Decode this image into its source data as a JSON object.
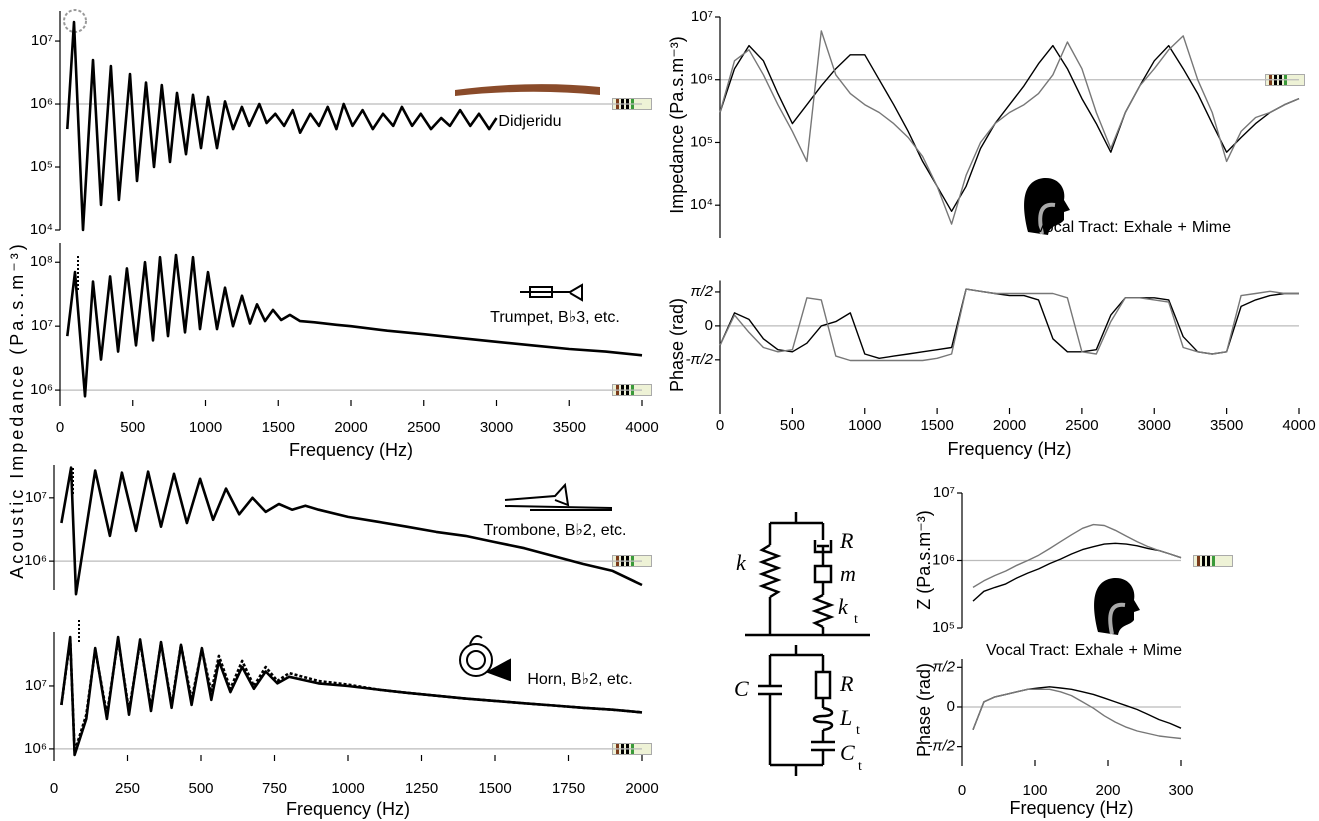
{
  "chart_data": [
    {
      "type": "line",
      "yscale": "log",
      "ylabel": "Acoustic Impedance (Pa.s.m⁻³)",
      "annotation": "Didjeridu",
      "color": "#000000",
      "xlim": [
        0,
        4000
      ],
      "ylim": [
        10000,
        30000000
      ],
      "hline": 1000000,
      "yticks": [
        {
          "value": 10000,
          "label": "10⁴"
        },
        {
          "value": 100000,
          "label": "10⁵"
        },
        {
          "value": 1000000,
          "label": "10⁶"
        },
        {
          "value": 10000000,
          "label": "10⁷"
        }
      ],
      "x": [
        50,
        96,
        158,
        227,
        282,
        350,
        405,
        481,
        529,
        591,
        646,
        700,
        756,
        804,
        866,
        914,
        969,
        1017,
        1079,
        1134,
        1190,
        1250,
        1300,
        1370,
        1420,
        1480,
        1540,
        1600,
        1650,
        1720,
        1780,
        1840,
        1900,
        1950,
        2010,
        2080,
        2150,
        2220,
        2290,
        2350,
        2420,
        2480,
        2550,
        2620,
        2680,
        2750,
        2820,
        2880,
        2950,
        3000
      ],
      "values": [
        400000,
        20000000,
        10000,
        5000000,
        25000,
        4000000,
        30000,
        3000000,
        60000,
        2200000,
        100000,
        2000000,
        120000,
        1500000,
        160000,
        1400000,
        200000,
        1300000,
        200000,
        1100000,
        400000,
        900000,
        450000,
        1000000,
        500000,
        700000,
        450000,
        800000,
        350000,
        700000,
        450000,
        900000,
        400000,
        1000000,
        450000,
        800000,
        400000,
        700000,
        450000,
        900000,
        450000,
        700000,
        400000,
        600000,
        450000,
        800000,
        450000,
        700000,
        400000,
        600000
      ]
    },
    {
      "type": "line",
      "yscale": "log",
      "xlabel": "Frequency (Hz)",
      "annotation": "Trumpet, B♭3, etc.",
      "color": "#000000",
      "xlim": [
        0,
        4000
      ],
      "ylim": [
        700000,
        200000000
      ],
      "hline": 1000000,
      "xticks": [
        0,
        500,
        1000,
        1500,
        2000,
        2500,
        3000,
        3500,
        4000
      ],
      "yticks": [
        {
          "value": 1000000,
          "label": "10⁶"
        },
        {
          "value": 10000000,
          "label": "10⁷"
        },
        {
          "value": 100000000,
          "label": "10⁸"
        }
      ],
      "x": [
        50,
        103,
        172,
        227,
        282,
        344,
        399,
        460,
        522,
        584,
        639,
        687,
        742,
        797,
        859,
        914,
        962,
        1017,
        1079,
        1134,
        1189,
        1251,
        1306,
        1354,
        1409,
        1464,
        1520,
        1580,
        1650,
        1750,
        1900,
        2000,
        2250,
        2500,
        2750,
        3000,
        3250,
        3500,
        3750,
        4000
      ],
      "values": [
        7000000,
        70000000,
        800000,
        50000000,
        3000000,
        60000000,
        4000000,
        80000000,
        5000000,
        100000000,
        6000000,
        120000000,
        7000000,
        130000000,
        8000000,
        120000000,
        9000000,
        70000000,
        9000000,
        40000000,
        10000000,
        30000000,
        11000000,
        22000000,
        12000000,
        18000000,
        12500000,
        15000000,
        12000000,
        11500000,
        10500000,
        10000000,
        8500000,
        7500000,
        6500000,
        5700000,
        5000000,
        4400000,
        4000000,
        3500000
      ]
    },
    {
      "type": "line",
      "yscale": "log",
      "annotation": "Trombone, B♭2, etc.",
      "color": "#000000",
      "xlim": [
        0,
        2000
      ],
      "ylim": [
        350000,
        33000000
      ],
      "hline": 1000000,
      "yticks": [
        {
          "value": 1000000,
          "label": "10⁶"
        },
        {
          "value": 10000000,
          "label": "10⁷"
        }
      ],
      "x": [
        25,
        58,
        75,
        140,
        190,
        231,
        279,
        320,
        364,
        408,
        452,
        497,
        541,
        585,
        630,
        675,
        720,
        765,
        810,
        855,
        900,
        1000,
        1100,
        1200,
        1300,
        1400,
        1500,
        1600,
        1700,
        1800,
        1900,
        2000
      ],
      "values": [
        4000000,
        30000000,
        300000,
        27000000,
        2500000,
        25000000,
        3000000,
        26000000,
        3500000,
        24000000,
        4000000,
        20000000,
        4500000,
        14000000,
        5500000,
        10000000,
        6000000,
        8000000,
        6500000,
        7500000,
        6500000,
        5000000,
        4200000,
        3500000,
        2900000,
        2500000,
        2000000,
        1600000,
        1200000,
        900000,
        700000,
        420000
      ]
    },
    {
      "type": "line",
      "yscale": "log",
      "xlabel": "Frequency (Hz)",
      "annotation": "Horn, B♭2, etc.",
      "xlim": [
        0,
        2000
      ],
      "ylim": [
        800000,
        72000000
      ],
      "hline": 1000000,
      "xticks": [
        0,
        250,
        500,
        750,
        1000,
        1250,
        1500,
        1750,
        2000
      ],
      "yticks": [
        {
          "value": 1000000,
          "label": "10⁶"
        },
        {
          "value": 10000000,
          "label": "10⁷"
        }
      ],
      "x": [
        25,
        55,
        70,
        110,
        140,
        180,
        218,
        255,
        293,
        330,
        364,
        400,
        432,
        468,
        503,
        535,
        561,
        600,
        640,
        680,
        720,
        760,
        800,
        900,
        1000,
        1100,
        1200,
        1300,
        1400,
        1500,
        1600,
        1700,
        1800,
        1900,
        2000
      ],
      "series": [
        {
          "color": "#000000",
          "linestyle": "solid",
          "values": [
            5000000,
            60000000,
            800000,
            3000000,
            40000000,
            3000000,
            60000000,
            3500000,
            55000000,
            4000000,
            50000000,
            4500000,
            45000000,
            5000000,
            40000000,
            6000000,
            25000000,
            8000000,
            20000000,
            9000000,
            17000000,
            11000000,
            14000000,
            11000000,
            10000000,
            8800000,
            7800000,
            7000000,
            6300000,
            5800000,
            5300000,
            4900000,
            4500000,
            4200000,
            3800000
          ]
        },
        {
          "color": "#000000",
          "linestyle": "dotted",
          "values": [
            5000000,
            55000000,
            900000,
            3500000,
            38000000,
            3500000,
            55000000,
            4000000,
            50000000,
            4500000,
            48000000,
            5000000,
            45000000,
            6000000,
            38000000,
            8000000,
            30000000,
            9000000,
            25000000,
            10000000,
            20000000,
            12000000,
            16000000,
            12000000,
            10500000,
            8800000,
            7800000,
            7000000,
            6300000,
            5800000,
            5300000,
            4900000,
            4500000,
            4200000,
            3800000
          ]
        }
      ]
    },
    {
      "type": "line",
      "yscale": "log",
      "ylabel": "Impedance (Pa.s.m⁻³)",
      "annotation": "Vocal Tract:",
      "annotation_joiner": "+",
      "xlim": [
        0,
        4000
      ],
      "ylim": [
        3000,
        10000000
      ],
      "hline": 1000000,
      "yticks": [
        {
          "value": 10000,
          "label": "10⁴"
        },
        {
          "value": 100000,
          "label": "10⁵"
        },
        {
          "value": 1000000,
          "label": "10⁶"
        },
        {
          "value": 10000000,
          "label": "10⁷"
        }
      ],
      "x": [
        0,
        100,
        200,
        300,
        400,
        500,
        600,
        700,
        800,
        900,
        1000,
        1100,
        1200,
        1300,
        1400,
        1500,
        1600,
        1700,
        1800,
        1900,
        2000,
        2100,
        2200,
        2300,
        2400,
        2500,
        2600,
        2700,
        2800,
        2900,
        3000,
        3100,
        3200,
        3300,
        3400,
        3500,
        3600,
        3700,
        3800,
        3900,
        4000
      ],
      "series": [
        {
          "name": "Exhale",
          "color": "#000000",
          "values": [
            300000,
            1500000,
            3500000,
            2000000,
            600000,
            200000,
            400000,
            800000,
            1500000,
            2500000,
            2500000,
            1000000,
            400000,
            150000,
            50000,
            20000,
            8000,
            20000,
            80000,
            200000,
            400000,
            800000,
            1800000,
            3500000,
            1500000,
            500000,
            200000,
            70000,
            300000,
            800000,
            2000000,
            3500000,
            1500000,
            600000,
            200000,
            70000,
            120000,
            200000,
            300000,
            400000,
            500000
          ]
        },
        {
          "name": "Mime",
          "color": "#777777",
          "values": [
            300000,
            2000000,
            3000000,
            1200000,
            400000,
            150000,
            50000,
            6000000,
            1200000,
            600000,
            400000,
            300000,
            200000,
            120000,
            60000,
            20000,
            5000,
            30000,
            100000,
            200000,
            300000,
            400000,
            600000,
            1200000,
            4000000,
            1500000,
            300000,
            80000,
            300000,
            800000,
            1500000,
            3000000,
            5000000,
            1000000,
            300000,
            50000,
            150000,
            250000,
            300000,
            400000,
            500000
          ]
        }
      ]
    },
    {
      "type": "line",
      "ylabel": "Phase (rad)",
      "xlabel": "Frequency (Hz)",
      "xlim": [
        0,
        4000
      ],
      "ylim": [
        -3.8,
        2.1
      ],
      "hline": 0,
      "xticks": [
        0,
        500,
        1000,
        1500,
        2000,
        2500,
        3000,
        3500,
        4000
      ],
      "yticks": [
        {
          "value": 1.5708,
          "label": "π/2"
        },
        0,
        {
          "value": -1.5708,
          "label": "-π/2"
        }
      ],
      "x": [
        0,
        100,
        200,
        300,
        400,
        500,
        600,
        700,
        800,
        900,
        1000,
        1100,
        1200,
        1300,
        1400,
        1500,
        1600,
        1700,
        1800,
        1900,
        2000,
        2100,
        2200,
        2300,
        2400,
        2500,
        2600,
        2700,
        2800,
        2900,
        3000,
        3100,
        3200,
        3300,
        3400,
        3500,
        3600,
        3700,
        3800,
        3900,
        4000
      ],
      "series": [
        {
          "color": "#000000",
          "values": [
            -0.9,
            0.6,
            0.3,
            -0.6,
            -1.1,
            -1.2,
            -0.8,
            0,
            0.2,
            0.6,
            -1.3,
            -1.5,
            -1.4,
            -1.3,
            -1.2,
            -1.1,
            -1.0,
            1.7,
            1.6,
            1.5,
            1.4,
            1.4,
            1.2,
            -0.6,
            -1.2,
            -1.2,
            -1.1,
            0.5,
            1.3,
            1.3,
            1.3,
            1.2,
            -0.5,
            -1.2,
            -1.3,
            -1.2,
            0.9,
            1.2,
            1.4,
            1.5,
            1.5
          ]
        },
        {
          "color": "#777777",
          "values": [
            -0.9,
            0.5,
            -0.3,
            -1.0,
            -1.2,
            -1.1,
            1.3,
            1.2,
            -1.4,
            -1.6,
            -1.6,
            -1.6,
            -1.6,
            -1.6,
            -1.6,
            -1.5,
            -1.3,
            1.7,
            1.6,
            1.5,
            1.5,
            1.5,
            1.5,
            1.5,
            1.3,
            -1.2,
            -1.3,
            0.2,
            1.3,
            1.3,
            1.2,
            1.1,
            -1.0,
            -1.2,
            -1.3,
            -1.2,
            1.4,
            1.5,
            1.6,
            1.5,
            1.5
          ]
        }
      ]
    },
    {
      "type": "line",
      "yscale": "log",
      "ylabel": "Z (Pa.s.m⁻³)",
      "annotation": "Vocal Tract:",
      "annotation_joiner": "+",
      "xlim": [
        0,
        300
      ],
      "ylim": [
        100000,
        10000000
      ],
      "hline": 1000000,
      "yticks": [
        {
          "value": 100000,
          "label": "10⁵"
        },
        {
          "value": 1000000,
          "label": "10⁶"
        },
        {
          "value": 10000000,
          "label": "10⁷"
        }
      ],
      "x": [
        15,
        30,
        45,
        60,
        75,
        90,
        105,
        120,
        135,
        150,
        165,
        180,
        195,
        210,
        225,
        240,
        255,
        270,
        285,
        300
      ],
      "series": [
        {
          "name": "Exhale",
          "color": "#000000",
          "values": [
            250000,
            350000,
            400000,
            450000,
            550000,
            650000,
            750000,
            900000,
            1050000,
            1250000,
            1450000,
            1600000,
            1750000,
            1800000,
            1750000,
            1650000,
            1500000,
            1400000,
            1250000,
            1100000
          ]
        },
        {
          "name": "Mime",
          "color": "#777777",
          "values": [
            400000,
            500000,
            600000,
            700000,
            850000,
            1000000,
            1200000,
            1500000,
            1900000,
            2400000,
            3000000,
            3400000,
            3300000,
            2800000,
            2300000,
            1900000,
            1600000,
            1400000,
            1250000,
            1100000
          ]
        }
      ]
    },
    {
      "type": "line",
      "ylabel": "Phase (rad)",
      "xlabel": "Frequency (Hz)",
      "xlim": [
        0,
        300
      ],
      "ylim": [
        -2.1,
        1.9
      ],
      "hline": 0,
      "xticks": [
        0,
        100,
        200,
        300
      ],
      "yticks": [
        {
          "value": 1.5708,
          "label": "π/2"
        },
        0,
        {
          "value": -1.5708,
          "label": "-π/2"
        }
      ],
      "x": [
        15,
        30,
        45,
        60,
        75,
        90,
        105,
        120,
        135,
        150,
        165,
        180,
        195,
        210,
        225,
        240,
        255,
        270,
        285,
        300
      ],
      "series": [
        {
          "color": "#000000",
          "values": [
            -0.9,
            0.2,
            0.4,
            0.5,
            0.6,
            0.7,
            0.75,
            0.8,
            0.75,
            0.7,
            0.6,
            0.5,
            0.35,
            0.2,
            0.05,
            -0.1,
            -0.3,
            -0.5,
            -0.65,
            -0.84
          ]
        },
        {
          "color": "#777777",
          "values": [
            -0.9,
            0.2,
            0.4,
            0.5,
            0.6,
            0.7,
            0.7,
            0.7,
            0.6,
            0.45,
            0.2,
            -0.05,
            -0.35,
            -0.6,
            -0.8,
            -0.95,
            -1.05,
            -1.15,
            -1.2,
            -1.25
          ]
        }
      ]
    }
  ],
  "circuit": {
    "upper": [
      {
        "text": "k"
      },
      {
        "text": "R"
      },
      {
        "text": "m"
      },
      {
        "text": "k",
        "sub": "t"
      }
    ],
    "lower": [
      {
        "text": "C"
      },
      {
        "text": "R"
      },
      {
        "text": "L",
        "sub": "t"
      },
      {
        "text": "C",
        "sub": "t"
      }
    ]
  }
}
